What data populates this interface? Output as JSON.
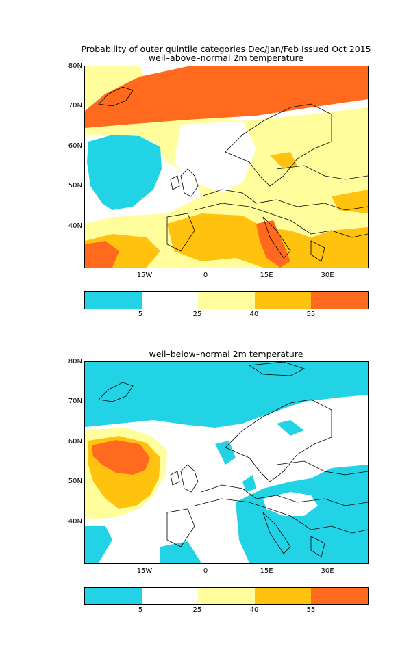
{
  "title_main": "Probability of outer quintile categories Dec/Jan/Feb Issued Oct 2015",
  "panels": [
    {
      "subtitle": "well–above–normal 2m temperature"
    },
    {
      "subtitle": "well–below–normal 2m temperature"
    }
  ],
  "lat_labels": [
    "80N",
    "70N",
    "60N",
    "50N",
    "40N"
  ],
  "lon_labels": [
    "15W",
    "0",
    "15E",
    "30E"
  ],
  "legend": {
    "labels": [
      "5",
      "25",
      "40",
      "55"
    ],
    "colors": [
      "#22d3e6",
      "#ffffff",
      "#fffd9c",
      "#ffc20e",
      "#ff6a1f"
    ]
  }
}
